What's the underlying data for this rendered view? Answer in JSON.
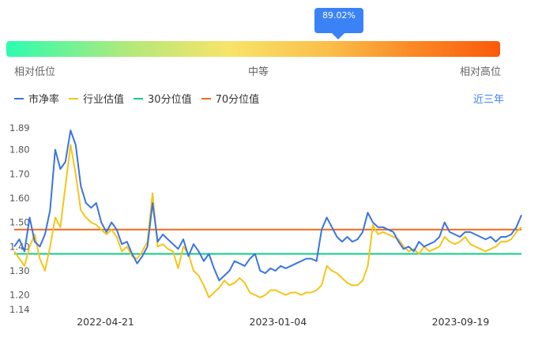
{
  "gauge": {
    "percentile_label": "89.02%",
    "percentile_value": 0.8902,
    "low_label": "相对低位",
    "mid_label": "中等",
    "high_label": "相对高位"
  },
  "legend": {
    "items": [
      {
        "key": "pb",
        "label": "市净率",
        "color": "#3b74e0"
      },
      {
        "key": "industry",
        "label": "行业估值",
        "color": "#f5c518"
      },
      {
        "key": "p30",
        "label": "30分位值",
        "color": "#12c98a"
      },
      {
        "key": "p70",
        "label": "70分位值",
        "color": "#ee6a1b"
      }
    ],
    "range_label": "近三年"
  },
  "chart_data": {
    "type": "line",
    "y_ticks": [
      "1.89",
      "1.80",
      "1.70",
      "1.60",
      "1.50",
      "1.40",
      "1.30",
      "1.20",
      "1.14"
    ],
    "ylim": [
      1.14,
      1.89
    ],
    "x_ticks": [
      "2022-04-21",
      "2023-01-04",
      "2023-09-19"
    ],
    "percentile_30": 1.37,
    "percentile_70": 1.47,
    "series": [
      {
        "name": "市净率",
        "color": "#3b74e0",
        "values": [
          1.4,
          1.43,
          1.38,
          1.52,
          1.42,
          1.4,
          1.45,
          1.55,
          1.8,
          1.72,
          1.75,
          1.88,
          1.82,
          1.65,
          1.58,
          1.56,
          1.58,
          1.5,
          1.46,
          1.5,
          1.47,
          1.41,
          1.42,
          1.37,
          1.33,
          1.36,
          1.4,
          1.58,
          1.42,
          1.45,
          1.43,
          1.41,
          1.39,
          1.43,
          1.36,
          1.41,
          1.38,
          1.34,
          1.37,
          1.31,
          1.26,
          1.28,
          1.3,
          1.34,
          1.33,
          1.32,
          1.35,
          1.37,
          1.3,
          1.29,
          1.31,
          1.3,
          1.32,
          1.31,
          1.32,
          1.33,
          1.34,
          1.35,
          1.35,
          1.34,
          1.47,
          1.52,
          1.48,
          1.44,
          1.42,
          1.44,
          1.42,
          1.43,
          1.46,
          1.54,
          1.5,
          1.48,
          1.48,
          1.47,
          1.46,
          1.42,
          1.39,
          1.4,
          1.38,
          1.42,
          1.4,
          1.41,
          1.42,
          1.44,
          1.5,
          1.46,
          1.45,
          1.44,
          1.46,
          1.46,
          1.45,
          1.44,
          1.43,
          1.44,
          1.42,
          1.44,
          1.44,
          1.45,
          1.48,
          1.53
        ]
      },
      {
        "name": "行业估值",
        "color": "#f5c518",
        "values": [
          1.38,
          1.35,
          1.32,
          1.4,
          1.45,
          1.35,
          1.3,
          1.4,
          1.52,
          1.48,
          1.65,
          1.82,
          1.7,
          1.55,
          1.52,
          1.5,
          1.49,
          1.47,
          1.45,
          1.47,
          1.44,
          1.38,
          1.4,
          1.36,
          1.35,
          1.38,
          1.42,
          1.62,
          1.4,
          1.41,
          1.39,
          1.38,
          1.31,
          1.4,
          1.37,
          1.3,
          1.28,
          1.24,
          1.19,
          1.21,
          1.23,
          1.26,
          1.24,
          1.25,
          1.27,
          1.25,
          1.21,
          1.2,
          1.19,
          1.2,
          1.22,
          1.22,
          1.21,
          1.2,
          1.21,
          1.21,
          1.2,
          1.21,
          1.21,
          1.22,
          1.24,
          1.32,
          1.3,
          1.29,
          1.27,
          1.25,
          1.24,
          1.24,
          1.26,
          1.32,
          1.49,
          1.45,
          1.46,
          1.45,
          1.44,
          1.43,
          1.4,
          1.38,
          1.39,
          1.37,
          1.4,
          1.38,
          1.39,
          1.4,
          1.44,
          1.42,
          1.41,
          1.42,
          1.44,
          1.41,
          1.4,
          1.39,
          1.38,
          1.39,
          1.4,
          1.42,
          1.42,
          1.43,
          1.46,
          1.48
        ]
      }
    ]
  }
}
